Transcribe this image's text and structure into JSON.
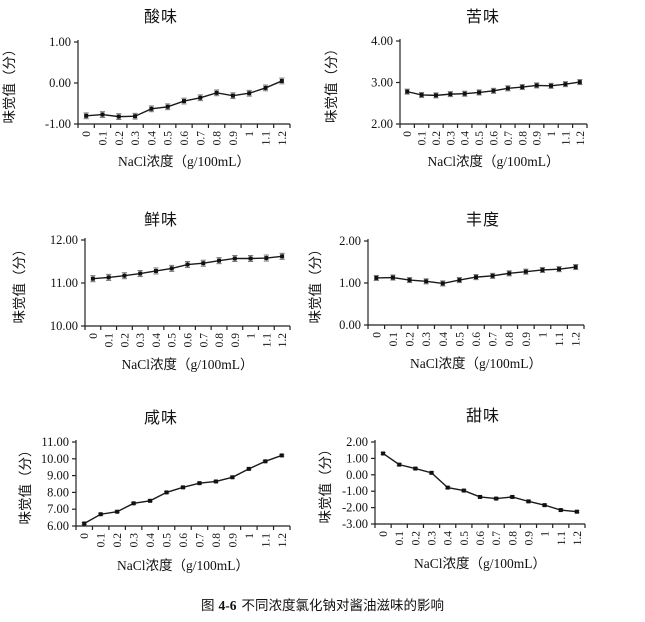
{
  "figure": {
    "caption": {
      "prefix": "图",
      "number": "4-6",
      "text": "不同浓度氯化钠对酱油滋味的影响"
    }
  },
  "chart_data": [
    {
      "type": "line",
      "title": "酸味",
      "xlabel": "NaCl浓度（g/100mL）",
      "ylabel": "味觉值（分）",
      "categories": [
        "0",
        "0.1",
        "0.2",
        "0.3",
        "0.4",
        "0.5",
        "0.6",
        "0.7",
        "0.8",
        "0.9",
        "1",
        "1.1",
        "1.2"
      ],
      "values": [
        -0.8,
        -0.77,
        -0.82,
        -0.81,
        -0.63,
        -0.58,
        -0.44,
        -0.36,
        -0.24,
        -0.31,
        -0.25,
        -0.12,
        0.05
      ],
      "error": 0.07,
      "ylim": [
        -1,
        1
      ],
      "y_ticks": [
        "1.00",
        "0.00",
        "-1.00"
      ],
      "grid": false,
      "legend": "none",
      "line_color": "#1a1a1a"
    },
    {
      "type": "line",
      "title": "苦味",
      "xlabel": "NaCl浓度（g/100mL）",
      "ylabel": "味觉值（分）",
      "categories": [
        "0",
        "0.1",
        "0.2",
        "0.3",
        "0.4",
        "0.5",
        "0.6",
        "0.7",
        "0.8",
        "0.9",
        "1",
        "1.1",
        "1.2"
      ],
      "values": [
        2.78,
        2.7,
        2.69,
        2.72,
        2.73,
        2.76,
        2.8,
        2.86,
        2.89,
        2.93,
        2.92,
        2.96,
        3.01
      ],
      "error": 0.06,
      "ylim": [
        2,
        4
      ],
      "y_ticks": [
        "4.00",
        "3.00",
        "2.00"
      ],
      "grid": false,
      "legend": "none",
      "line_color": "#1a1a1a"
    },
    {
      "type": "line",
      "title": "鲜味",
      "xlabel": "NaCl浓度（g/100mL）",
      "ylabel": "味觉值（分）",
      "categories": [
        "0",
        "0.1",
        "0.2",
        "0.3",
        "0.4",
        "0.5",
        "0.6",
        "0.7",
        "0.8",
        "0.9",
        "1",
        "1.1",
        "1.2"
      ],
      "values": [
        11.1,
        11.13,
        11.17,
        11.22,
        11.28,
        11.34,
        11.43,
        11.46,
        11.52,
        11.57,
        11.57,
        11.58,
        11.62
      ],
      "error": 0.07,
      "ylim": [
        10,
        12
      ],
      "y_ticks": [
        "12.00",
        "11.00",
        "10.00"
      ],
      "grid": false,
      "legend": "none",
      "line_color": "#1a1a1a"
    },
    {
      "type": "line",
      "title": "丰度",
      "xlabel": "NaCl浓度（g/100mL）",
      "ylabel": "味觉值（分）",
      "categories": [
        "0",
        "0.1",
        "0.2",
        "0.3",
        "0.4",
        "0.5",
        "0.6",
        "0.7",
        "0.8",
        "0.9",
        "1",
        "1.1",
        "1.2"
      ],
      "values": [
        1.12,
        1.13,
        1.07,
        1.04,
        0.99,
        1.07,
        1.14,
        1.17,
        1.23,
        1.27,
        1.31,
        1.33,
        1.38
      ],
      "error": 0.06,
      "ylim": [
        0,
        2
      ],
      "y_ticks": [
        "2.00",
        "1.00",
        "0.00"
      ],
      "grid": false,
      "legend": "none",
      "line_color": "#1a1a1a"
    },
    {
      "type": "line",
      "title": "咸味",
      "xlabel": "NaCl浓度（g/100mL）",
      "ylabel": "味觉值（分）",
      "categories": [
        "0",
        "0.1",
        "0.2",
        "0.3",
        "0.4",
        "0.5",
        "0.6",
        "0.7",
        "0.8",
        "0.9",
        "1",
        "1.1",
        "1.2"
      ],
      "values": [
        6.15,
        6.7,
        6.85,
        7.35,
        7.5,
        8.0,
        8.3,
        8.55,
        8.65,
        8.9,
        9.4,
        9.85,
        10.2
      ],
      "error": 0.05,
      "ylim": [
        6,
        11
      ],
      "y_ticks": [
        "11.00",
        "10.00",
        "9.00",
        "8.00",
        "7.00",
        "6.00"
      ],
      "grid": false,
      "legend": "none",
      "line_color": "#1a1a1a"
    },
    {
      "type": "line",
      "title": "甜味",
      "xlabel": "NaCl浓度（g/100mL）",
      "ylabel": "味觉值（分）",
      "categories": [
        "0",
        "0.1",
        "0.2",
        "0.3",
        "0.4",
        "0.5",
        "0.6",
        "0.7",
        "0.8",
        "0.9",
        "1",
        "1.1",
        "1.2"
      ],
      "values": [
        1.3,
        0.62,
        0.38,
        0.12,
        -0.78,
        -0.96,
        -1.35,
        -1.45,
        -1.35,
        -1.62,
        -1.85,
        -2.15,
        -2.25
      ],
      "error": 0.06,
      "ylim": [
        -3,
        2
      ],
      "y_ticks": [
        "2.00",
        "1.00",
        "0.00",
        "-1.00",
        "-2.00",
        "-3.00"
      ],
      "grid": false,
      "legend": "none",
      "line_color": "#1a1a1a"
    }
  ]
}
